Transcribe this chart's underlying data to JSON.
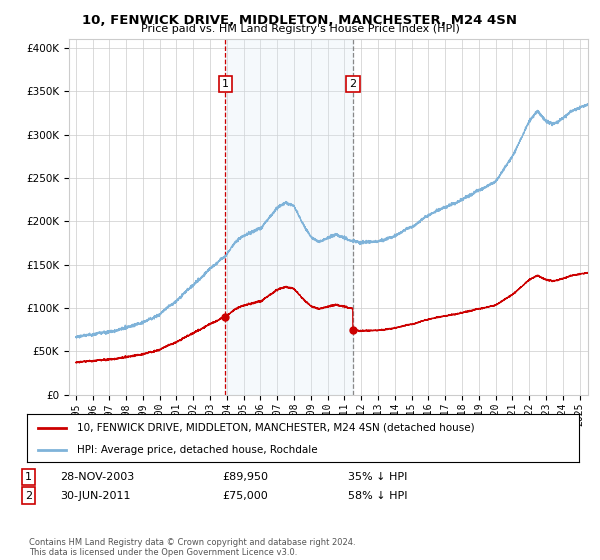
{
  "title": "10, FENWICK DRIVE, MIDDLETON, MANCHESTER, M24 4SN",
  "subtitle": "Price paid vs. HM Land Registry's House Price Index (HPI)",
  "hpi_label": "HPI: Average price, detached house, Rochdale",
  "property_label": "10, FENWICK DRIVE, MIDDLETON, MANCHESTER, M24 4SN (detached house)",
  "footnote": "Contains HM Land Registry data © Crown copyright and database right 2024.\nThis data is licensed under the Open Government Licence v3.0.",
  "sale1_date": "28-NOV-2003",
  "sale1_price": 89950,
  "sale1_pct": "35% ↓ HPI",
  "sale2_date": "30-JUN-2011",
  "sale2_price": 75000,
  "sale2_pct": "58% ↓ HPI",
  "sale1_x": 2003.91,
  "sale2_x": 2011.5,
  "ylim_min": 0,
  "ylim_max": 410000,
  "xlim_min": 1994.6,
  "xlim_max": 2025.5,
  "hpi_color": "#7fb3d9",
  "property_color": "#cc0000",
  "vline1_color": "#cc0000",
  "vline2_color": "#888888",
  "shade_color": "#d8e8f5",
  "grid_color": "#cccccc",
  "background_color": "#ffffff"
}
